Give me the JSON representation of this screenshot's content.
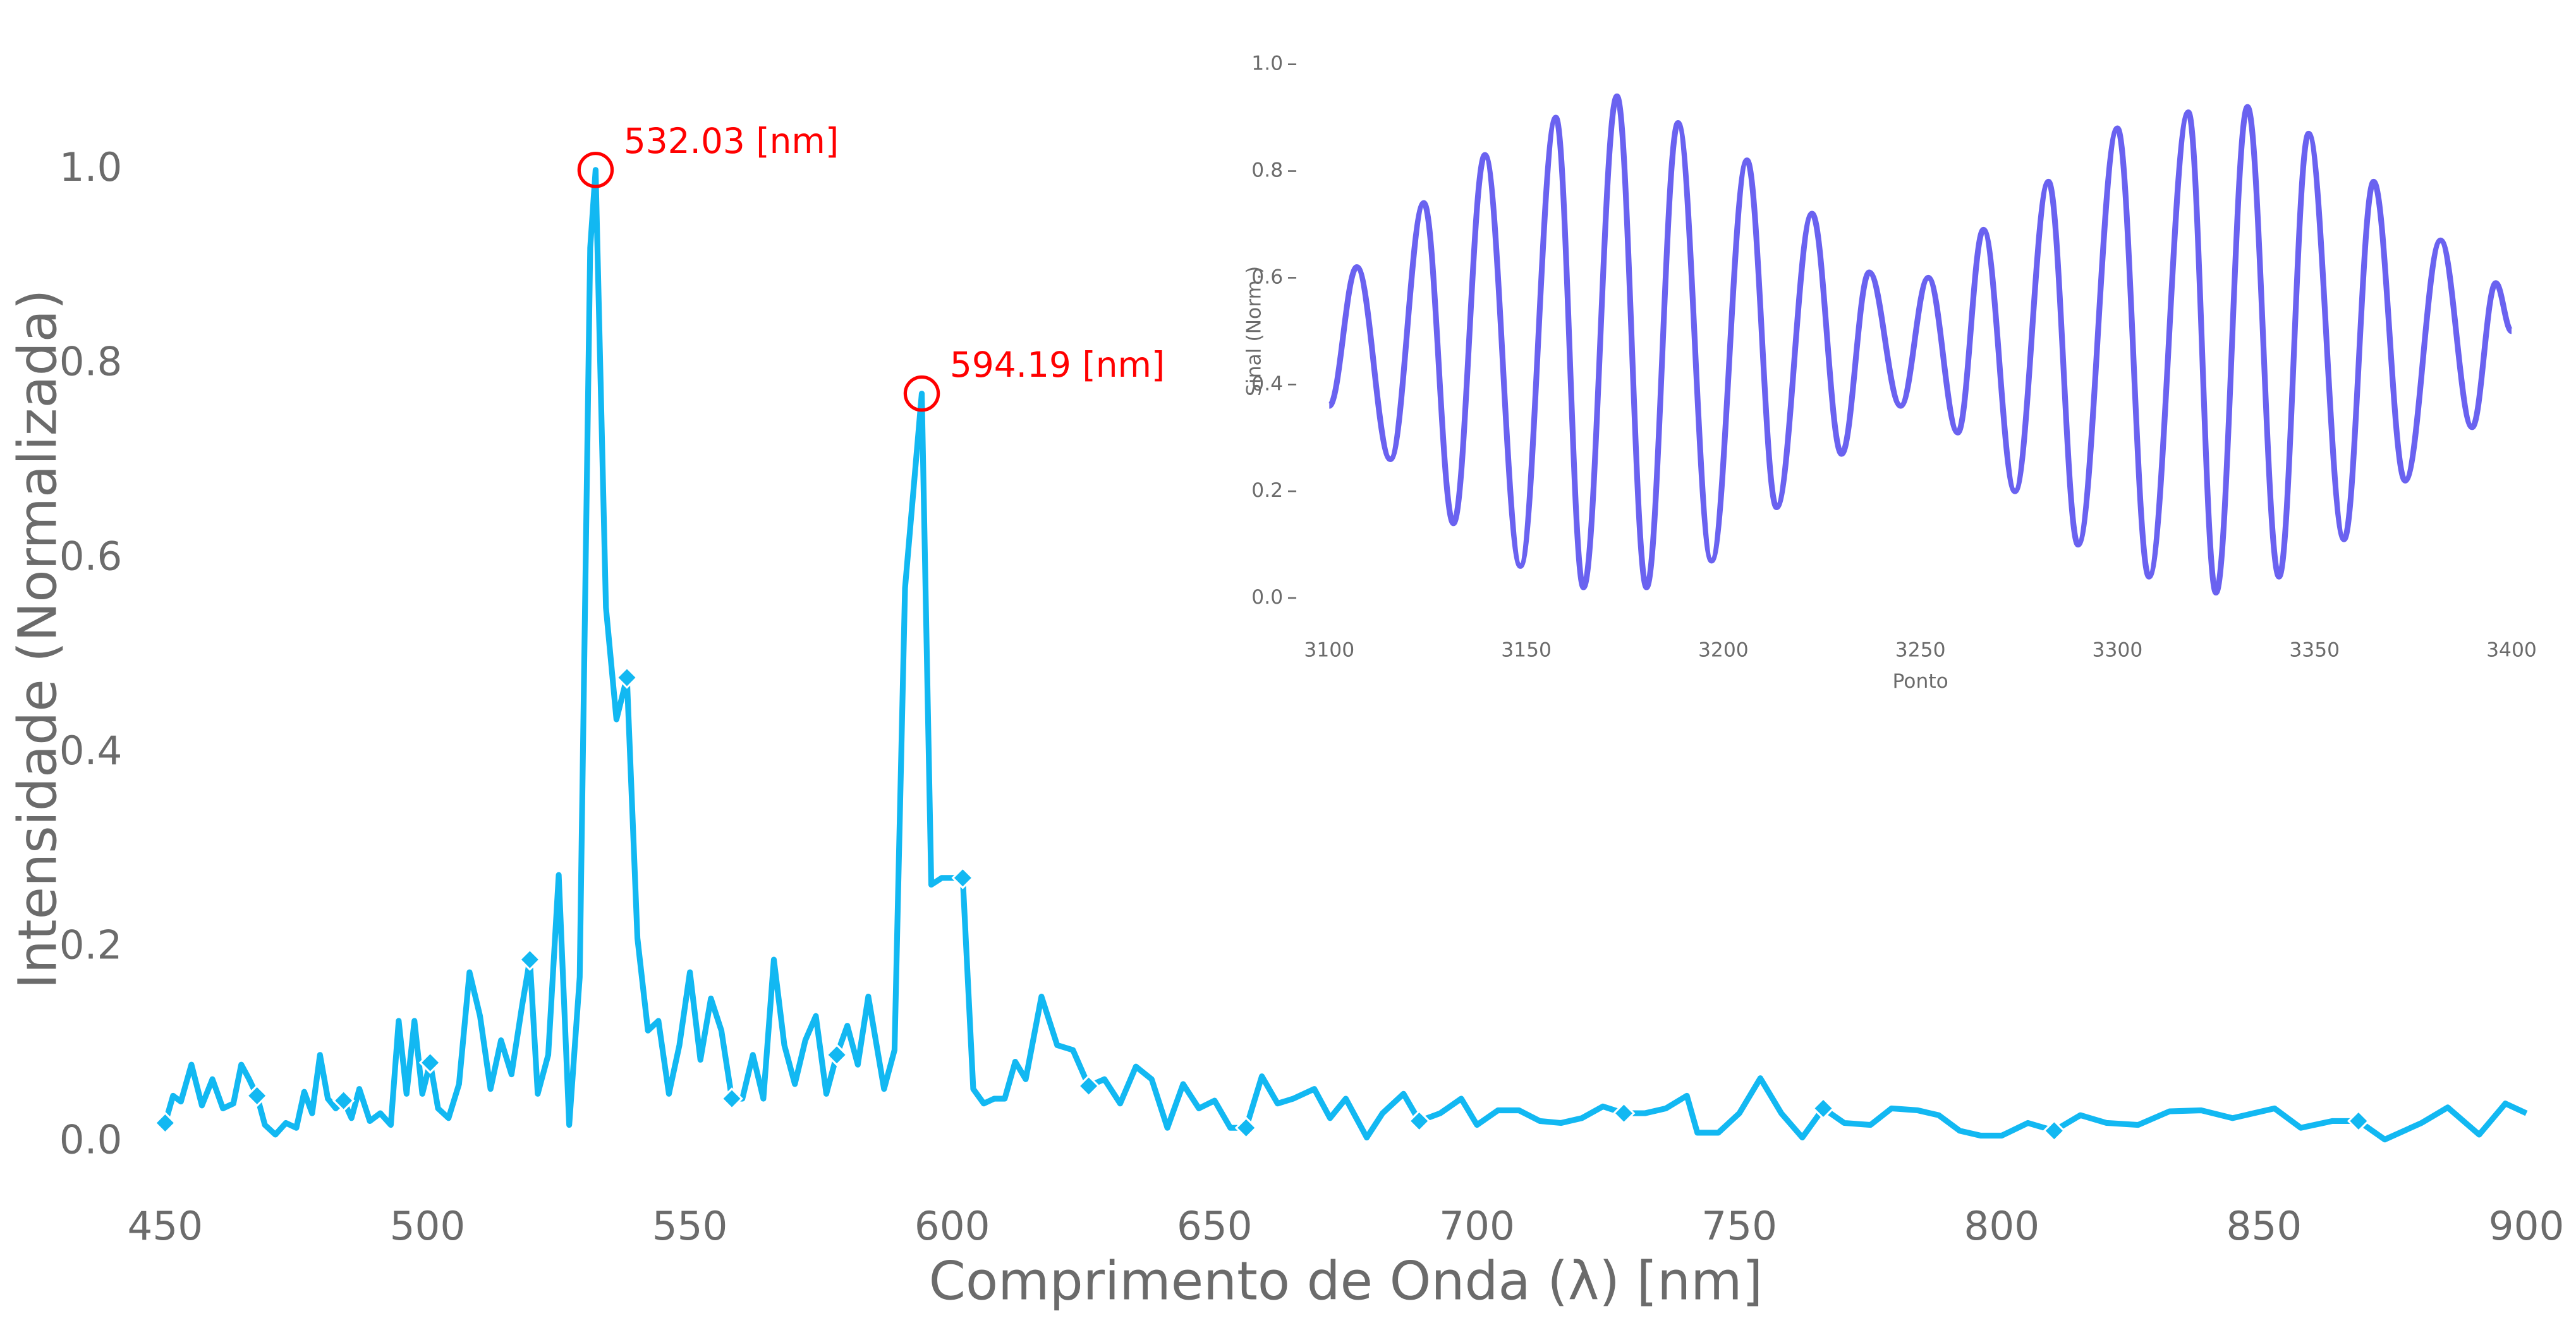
{
  "chart_data": [
    {
      "type": "line",
      "xlabel": "Comprimento de Onda (λ) [nm]",
      "ylabel": "Intensidade (Normalizada)",
      "color": "#12b8f2",
      "marker": "diamond",
      "markevery": 10,
      "x": [
        450,
        451.5,
        453,
        455,
        457,
        459,
        461,
        463,
        464.5,
        466,
        467.5,
        469,
        471,
        473,
        475,
        476.5,
        478,
        479.5,
        481,
        482.5,
        484,
        485.5,
        487,
        489,
        491,
        493,
        494.5,
        496,
        497.5,
        499,
        500.5,
        502,
        504,
        506,
        508,
        510,
        512,
        514,
        516,
        518,
        519.5,
        521,
        523,
        525,
        527,
        529,
        531,
        532.03,
        534,
        536,
        538,
        540,
        542,
        544,
        546,
        548,
        550,
        552,
        554,
        556,
        558,
        560,
        562,
        564,
        566,
        568,
        570,
        572,
        574,
        576,
        578,
        580,
        582,
        584,
        587,
        589,
        591,
        594.19,
        596,
        598,
        602,
        604,
        606,
        608,
        610,
        612,
        614,
        617,
        620,
        623,
        626,
        629,
        632,
        635,
        638,
        641,
        644,
        647,
        650,
        653,
        656,
        659,
        662,
        665,
        669,
        672,
        675,
        679,
        682,
        686,
        689,
        693,
        697,
        700,
        704,
        708,
        712,
        716,
        720,
        724,
        728,
        732,
        736,
        740,
        742,
        746,
        750,
        754,
        758,
        762,
        766,
        770,
        775,
        779,
        784,
        788,
        792,
        796,
        800,
        805,
        810,
        815,
        820,
        826,
        832,
        838,
        844,
        852,
        857,
        863,
        868,
        873,
        880,
        885,
        891,
        896,
        900
      ],
      "values": [
        0.02,
        0.048,
        0.042,
        0.08,
        0.038,
        0.065,
        0.035,
        0.04,
        0.08,
        0.065,
        0.048,
        0.018,
        0.008,
        0.02,
        0.015,
        0.052,
        0.03,
        0.09,
        0.045,
        0.035,
        0.043,
        0.025,
        0.055,
        0.022,
        0.03,
        0.018,
        0.125,
        0.05,
        0.125,
        0.05,
        0.082,
        0.035,
        0.025,
        0.06,
        0.175,
        0.13,
        0.055,
        0.105,
        0.07,
        0.14,
        0.188,
        0.05,
        0.09,
        0.275,
        0.018,
        0.17,
        0.92,
        1.0,
        0.55,
        0.435,
        0.478,
        0.21,
        0.115,
        0.125,
        0.05,
        0.1,
        0.175,
        0.085,
        0.148,
        0.115,
        0.045,
        0.045,
        0.09,
        0.045,
        0.188,
        0.1,
        0.06,
        0.105,
        0.13,
        0.05,
        0.09,
        0.12,
        0.08,
        0.15,
        0.055,
        0.095,
        0.57,
        0.77,
        0.265,
        0.272,
        0.272,
        0.055,
        0.04,
        0.045,
        0.045,
        0.083,
        0.065,
        0.15,
        0.1,
        0.095,
        0.058,
        0.065,
        0.04,
        0.078,
        0.065,
        0.015,
        0.06,
        0.035,
        0.043,
        0.015,
        0.015,
        0.068,
        0.04,
        0.045,
        0.055,
        0.025,
        0.045,
        0.005,
        0.03,
        0.05,
        0.022,
        0.03,
        0.045,
        0.018,
        0.033,
        0.033,
        0.022,
        0.02,
        0.025,
        0.037,
        0.03,
        0.03,
        0.035,
        0.048,
        0.01,
        0.01,
        0.03,
        0.066,
        0.03,
        0.005,
        0.035,
        0.02,
        0.018,
        0.035,
        0.033,
        0.028,
        0.012,
        0.007,
        0.007,
        0.02,
        0.012,
        0.028,
        0.02,
        0.018,
        0.032,
        0.033,
        0.025,
        0.035,
        0.015,
        0.022,
        0.022,
        0.003,
        0.02,
        0.036,
        0.008,
        0.04,
        0.03
      ],
      "xlim": [
        450,
        900
      ],
      "xticks": [
        450,
        500,
        550,
        600,
        650,
        700,
        750,
        800,
        850,
        900
      ],
      "ylim": [
        -0.065,
        1.1
      ],
      "yticks": [
        {
          "value": 0,
          "label": "0.0"
        },
        0.2,
        0.4,
        0.6,
        0.8,
        {
          "value": 1,
          "label": "1.0"
        }
      ],
      "annotations": [
        {
          "text": "532.03 [nm]",
          "x": 532.03,
          "y": 1.0,
          "color": "#ff0000"
        },
        {
          "text": "594.19 [nm]",
          "x": 594.19,
          "y": 0.77,
          "color": "#ff0000"
        }
      ]
    },
    {
      "type": "line",
      "xlabel": "Ponto",
      "ylabel": "Sinal (Norm.)",
      "color": "#6a62f0",
      "smooth": true,
      "tick_marks": true,
      "x": [
        3100,
        3107,
        3115.5,
        3124,
        3131.5,
        3139.5,
        3148.5,
        3157.5,
        3164.5,
        3173,
        3180.5,
        3188.5,
        3197,
        3206,
        3213.5,
        3222.5,
        3230,
        3237,
        3245,
        3252,
        3259.5,
        3266,
        3274,
        3282.5,
        3290,
        3300,
        3308,
        3318,
        3325,
        3333,
        3341,
        3348.5,
        3357.5,
        3365,
        3373,
        3382,
        3390,
        3396,
        3400
      ],
      "values": [
        0.36,
        0.62,
        0.26,
        0.74,
        0.14,
        0.83,
        0.06,
        0.9,
        0.02,
        0.94,
        0.02,
        0.89,
        0.07,
        0.82,
        0.17,
        0.72,
        0.27,
        0.61,
        0.36,
        0.6,
        0.31,
        0.69,
        0.2,
        0.78,
        0.1,
        0.88,
        0.04,
        0.91,
        0.01,
        0.92,
        0.04,
        0.87,
        0.11,
        0.78,
        0.22,
        0.67,
        0.32,
        0.59,
        0.5
      ],
      "xlim": [
        3100,
        3400
      ],
      "xticks": [
        3100,
        3150,
        3200,
        3250,
        3300,
        3350,
        3400
      ],
      "ylim": [
        -0.04,
        1.04
      ],
      "yticks": [
        {
          "value": 0,
          "label": "0.0"
        },
        0.2,
        0.4,
        0.6,
        0.8,
        {
          "value": 1,
          "label": "1.0"
        }
      ]
    }
  ]
}
